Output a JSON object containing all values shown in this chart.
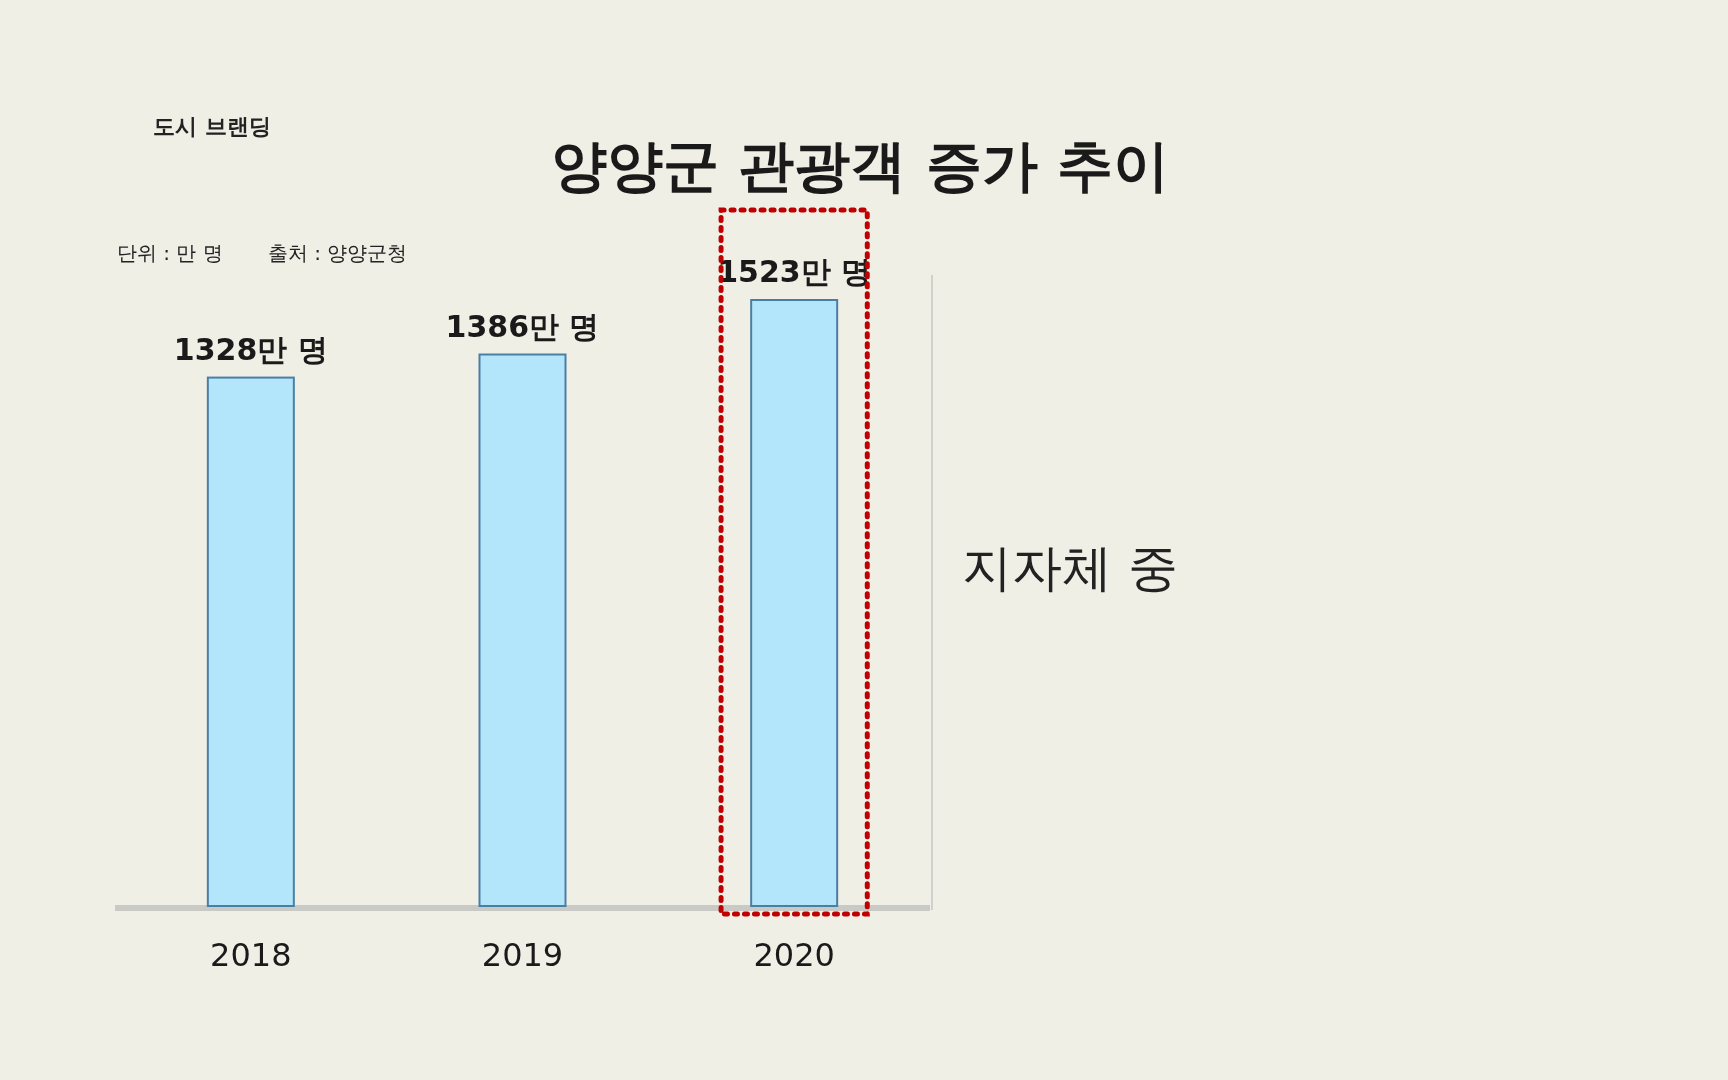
{
  "chart_data": {
    "type": "bar",
    "title": "양양군 관광객 증가 추이",
    "categories": [
      "2018",
      "2019",
      "2020"
    ],
    "values": [
      1328,
      1386,
      1523
    ],
    "value_labels": [
      "1328만 명",
      "1386만 명",
      "1523만 명"
    ],
    "color": "#b3e6fb",
    "annotations": [
      "단위 : 만 명",
      "출처 : 양양군청",
      "지자체 중",
      "도시 브랜딩"
    ]
  }
}
